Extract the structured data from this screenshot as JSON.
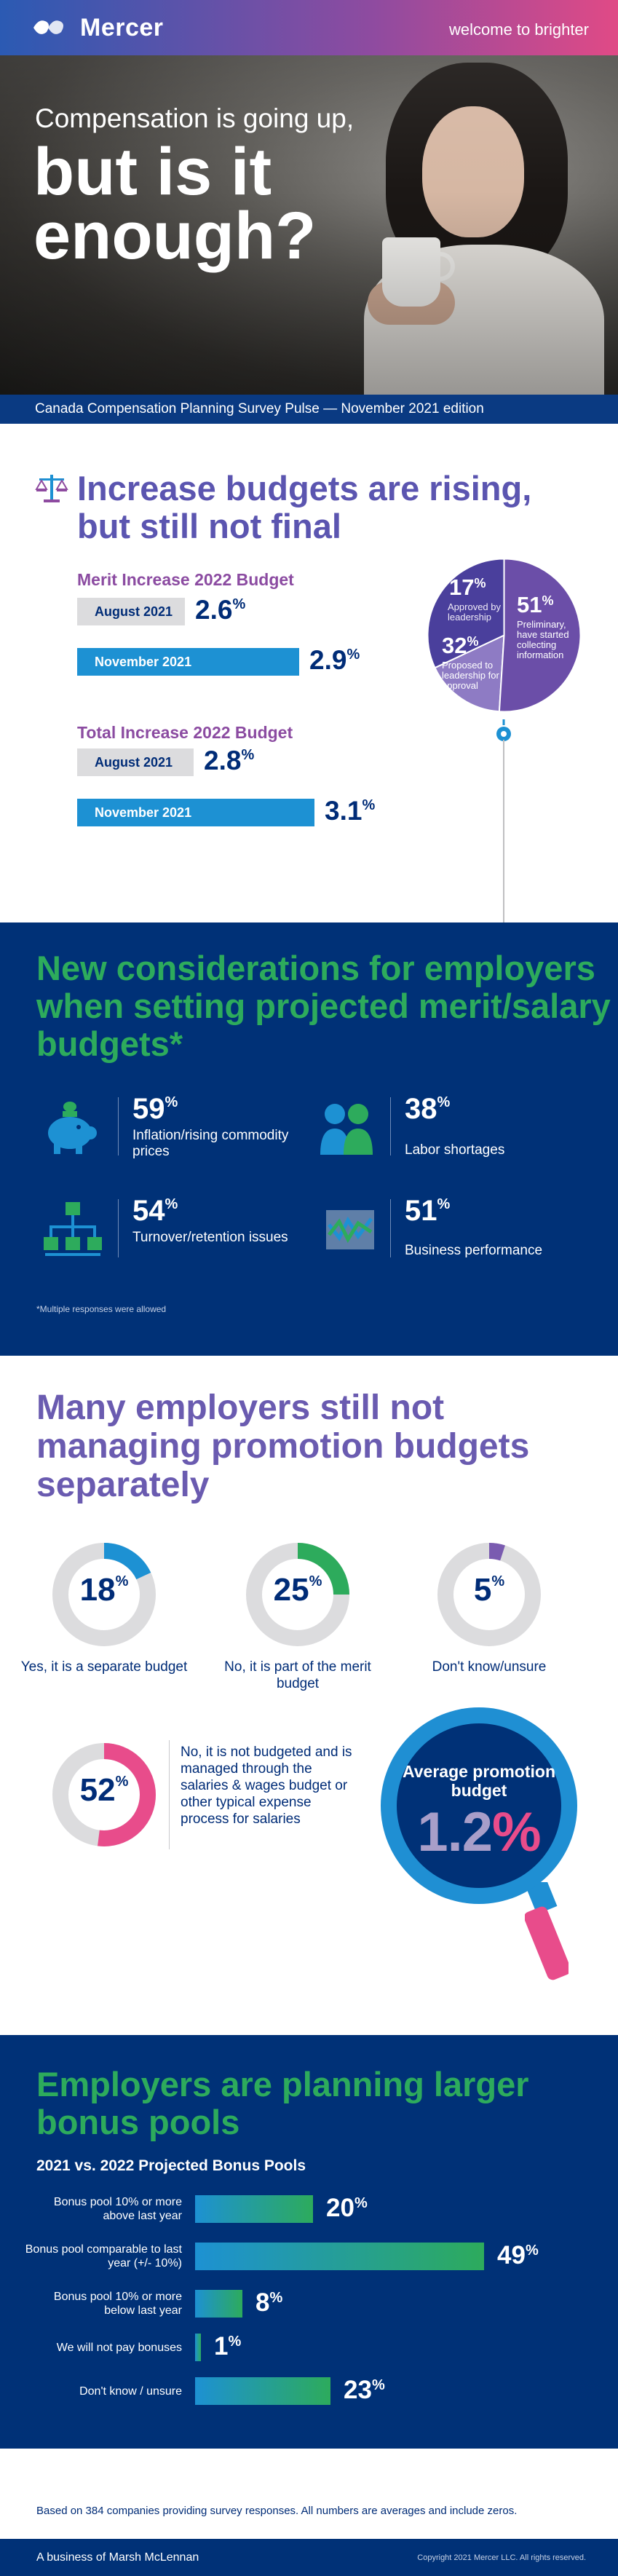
{
  "header": {
    "brand": "Mercer",
    "tagline": "welcome to brighter",
    "hero_sub": "Compensation is going up,",
    "hero_big": "but is it enough?",
    "edition": "Canada Compensation Planning Survey Pulse — November 2021 edition"
  },
  "section1": {
    "title": "Increase budgets are rising, but still not final",
    "merit_label": "Merit Increase 2022 Budget",
    "total_label": "Total Increase 2022 Budget",
    "pie_labels": {
      "s17_pct": "17",
      "s17_text": "Approved by leadership",
      "s32_pct": "32",
      "s32_text": "Proposed to leadership for approval",
      "s51_pct": "51",
      "s51_text": "Preliminary, have started collecting information"
    }
  },
  "section2": {
    "title": "New considerations for employers when setting projected merit/salary budgets*",
    "items": [
      {
        "value": "59",
        "label": "Inflation/rising commodity prices"
      },
      {
        "value": "38",
        "label": "Labor shortages"
      },
      {
        "value": "54",
        "label": "Turnover/retention issues"
      },
      {
        "value": "51",
        "label": "Business performance"
      }
    ],
    "note": "*Multiple responses were allowed"
  },
  "section3": {
    "title": "Many employers still not managing promotion budgets separately",
    "donuts": [
      {
        "value": "18",
        "label": "Yes, it is a separate budget",
        "color": "#1d91d3"
      },
      {
        "value": "25",
        "label": "No, it is part of the merit budget",
        "color": "#2dab5c"
      },
      {
        "value": "5",
        "label": "Don't know/unsure",
        "color": "#7a5bb0"
      },
      {
        "value": "52",
        "label": "No, it is not budgeted and is managed through the salaries & wages budget or other typical expense process for salaries",
        "color": "#e84c8b"
      }
    ],
    "avg_title": "Average promotion budget",
    "avg_value": "1.2",
    "avg_pct": "%"
  },
  "section4": {
    "title": "Employers are planning larger bonus pools",
    "subtitle": "2021 vs. 2022 Projected Bonus Pools"
  },
  "chart_data": [
    {
      "type": "bar",
      "title": "Merit Increase 2022 Budget",
      "categories": [
        "August 2021",
        "November 2021"
      ],
      "values": [
        2.6,
        2.9
      ],
      "unit": "%"
    },
    {
      "type": "bar",
      "title": "Total Increase 2022 Budget",
      "categories": [
        "August 2021",
        "November 2021"
      ],
      "values": [
        2.8,
        3.1
      ],
      "unit": "%"
    },
    {
      "type": "pie",
      "categories": [
        "Approved by leadership",
        "Proposed to leadership for approval",
        "Preliminary, have started collecting information"
      ],
      "values": [
        17,
        32,
        51
      ],
      "colors": [
        "#8e7bc4",
        "#4a3f9c",
        "#6b4ea8"
      ]
    },
    {
      "type": "bar",
      "title": "2021 vs. 2022 Projected Bonus Pools",
      "categories": [
        "Bonus pool 10% or more above last year",
        "Bonus pool comparable to last year (+/- 10%)",
        "Bonus pool 10% or more below last year",
        "We will not pay bonuses",
        "Don't know / unsure"
      ],
      "values": [
        20,
        49,
        8,
        1,
        23
      ],
      "unit": "%"
    }
  ],
  "footer": {
    "basis": "Based on 384 companies providing survey responses. All numbers are averages and include zeros.",
    "left": "A business of Marsh McLennan",
    "right": "Copyright 2021 Mercer LLC. All rights reserved."
  }
}
